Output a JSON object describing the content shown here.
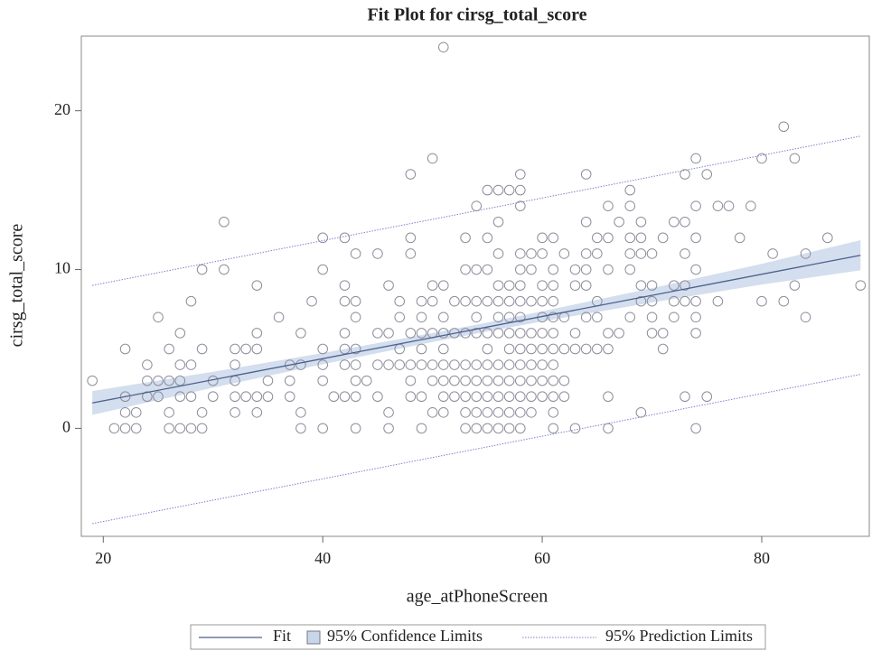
{
  "chart_data": {
    "type": "fitplot",
    "title": "Fit Plot for cirsg_total_score",
    "x_label": "age_atPhoneScreen",
    "y_label": "cirsg_total_score",
    "xlim": [
      18,
      89.8
    ],
    "ylim": [
      -6.8,
      24.7
    ],
    "xticks": [
      20,
      40,
      60,
      80
    ],
    "yticks": [
      0,
      10,
      20
    ],
    "legend": "bottom",
    "point_color": "#8e8e9c",
    "points": [
      [
        19,
        3
      ],
      [
        21,
        0
      ],
      [
        22,
        5
      ],
      [
        22,
        2
      ],
      [
        22,
        1
      ],
      [
        22,
        0
      ],
      [
        23,
        1
      ],
      [
        23,
        0
      ],
      [
        24,
        4
      ],
      [
        24,
        3
      ],
      [
        24,
        2
      ],
      [
        25,
        7
      ],
      [
        25,
        3
      ],
      [
        25,
        2
      ],
      [
        26,
        5
      ],
      [
        26,
        3
      ],
      [
        26,
        1
      ],
      [
        26,
        0
      ],
      [
        27,
        6
      ],
      [
        27,
        4
      ],
      [
        27,
        3
      ],
      [
        27,
        2
      ],
      [
        27,
        0
      ],
      [
        28,
        8
      ],
      [
        28,
        4
      ],
      [
        28,
        2
      ],
      [
        28,
        0
      ],
      [
        29,
        10
      ],
      [
        29,
        5
      ],
      [
        29,
        1
      ],
      [
        29,
        0
      ],
      [
        30,
        3
      ],
      [
        30,
        2
      ],
      [
        31,
        13
      ],
      [
        31,
        10
      ],
      [
        32,
        5
      ],
      [
        32,
        4
      ],
      [
        32,
        3
      ],
      [
        32,
        2
      ],
      [
        32,
        1
      ],
      [
        33,
        5
      ],
      [
        33,
        2
      ],
      [
        34,
        9
      ],
      [
        34,
        6
      ],
      [
        34,
        5
      ],
      [
        34,
        2
      ],
      [
        34,
        1
      ],
      [
        35,
        3
      ],
      [
        35,
        2
      ],
      [
        36,
        7
      ],
      [
        37,
        4
      ],
      [
        37,
        3
      ],
      [
        37,
        2
      ],
      [
        38,
        6
      ],
      [
        38,
        4
      ],
      [
        38,
        1
      ],
      [
        38,
        0
      ],
      [
        39,
        8
      ],
      [
        40,
        12
      ],
      [
        40,
        10
      ],
      [
        40,
        5
      ],
      [
        40,
        4
      ],
      [
        40,
        3
      ],
      [
        40,
        0
      ],
      [
        41,
        2
      ],
      [
        42,
        12
      ],
      [
        42,
        9
      ],
      [
        42,
        8
      ],
      [
        42,
        6
      ],
      [
        42,
        5
      ],
      [
        42,
        4
      ],
      [
        42,
        2
      ],
      [
        43,
        11
      ],
      [
        43,
        8
      ],
      [
        43,
        7
      ],
      [
        43,
        5
      ],
      [
        43,
        4
      ],
      [
        43,
        3
      ],
      [
        43,
        2
      ],
      [
        43,
        0
      ],
      [
        44,
        3
      ],
      [
        45,
        11
      ],
      [
        45,
        6
      ],
      [
        45,
        4
      ],
      [
        45,
        2
      ],
      [
        46,
        9
      ],
      [
        46,
        6
      ],
      [
        46,
        4
      ],
      [
        46,
        1
      ],
      [
        46,
        0
      ],
      [
        47,
        8
      ],
      [
        47,
        7
      ],
      [
        47,
        5
      ],
      [
        47,
        4
      ],
      [
        48,
        16
      ],
      [
        48,
        12
      ],
      [
        48,
        11
      ],
      [
        48,
        6
      ],
      [
        48,
        4
      ],
      [
        48,
        3
      ],
      [
        48,
        2
      ],
      [
        49,
        8
      ],
      [
        49,
        7
      ],
      [
        49,
        6
      ],
      [
        49,
        5
      ],
      [
        49,
        4
      ],
      [
        49,
        2
      ],
      [
        49,
        0
      ],
      [
        50,
        17
      ],
      [
        50,
        9
      ],
      [
        50,
        8
      ],
      [
        50,
        6
      ],
      [
        50,
        4
      ],
      [
        50,
        3
      ],
      [
        50,
        1
      ],
      [
        51,
        24
      ],
      [
        51,
        9
      ],
      [
        51,
        7
      ],
      [
        51,
        6
      ],
      [
        51,
        5
      ],
      [
        51,
        4
      ],
      [
        51,
        3
      ],
      [
        51,
        2
      ],
      [
        51,
        1
      ],
      [
        52,
        8
      ],
      [
        52,
        6
      ],
      [
        52,
        4
      ],
      [
        52,
        3
      ],
      [
        52,
        2
      ],
      [
        53,
        12
      ],
      [
        53,
        10
      ],
      [
        53,
        8
      ],
      [
        53,
        6
      ],
      [
        53,
        4
      ],
      [
        53,
        3
      ],
      [
        53,
        2
      ],
      [
        53,
        1
      ],
      [
        53,
        0
      ],
      [
        54,
        14
      ],
      [
        54,
        10
      ],
      [
        54,
        8
      ],
      [
        54,
        7
      ],
      [
        54,
        6
      ],
      [
        54,
        4
      ],
      [
        54,
        3
      ],
      [
        54,
        2
      ],
      [
        54,
        1
      ],
      [
        54,
        0
      ],
      [
        55,
        15
      ],
      [
        55,
        12
      ],
      [
        55,
        10
      ],
      [
        55,
        8
      ],
      [
        55,
        6
      ],
      [
        55,
        5
      ],
      [
        55,
        4
      ],
      [
        55,
        3
      ],
      [
        55,
        2
      ],
      [
        55,
        1
      ],
      [
        55,
        0
      ],
      [
        56,
        15
      ],
      [
        56,
        13
      ],
      [
        56,
        11
      ],
      [
        56,
        9
      ],
      [
        56,
        8
      ],
      [
        56,
        7
      ],
      [
        56,
        6
      ],
      [
        56,
        4
      ],
      [
        56,
        3
      ],
      [
        56,
        2
      ],
      [
        56,
        1
      ],
      [
        56,
        0
      ],
      [
        57,
        15
      ],
      [
        57,
        9
      ],
      [
        57,
        8
      ],
      [
        57,
        7
      ],
      [
        57,
        6
      ],
      [
        57,
        5
      ],
      [
        57,
        4
      ],
      [
        57,
        3
      ],
      [
        57,
        2
      ],
      [
        57,
        1
      ],
      [
        57,
        0
      ],
      [
        58,
        16
      ],
      [
        58,
        15
      ],
      [
        58,
        14
      ],
      [
        58,
        11
      ],
      [
        58,
        10
      ],
      [
        58,
        9
      ],
      [
        58,
        8
      ],
      [
        58,
        7
      ],
      [
        58,
        6
      ],
      [
        58,
        5
      ],
      [
        58,
        4
      ],
      [
        58,
        3
      ],
      [
        58,
        2
      ],
      [
        58,
        1
      ],
      [
        58,
        0
      ],
      [
        59,
        11
      ],
      [
        59,
        10
      ],
      [
        59,
        8
      ],
      [
        59,
        6
      ],
      [
        59,
        5
      ],
      [
        59,
        4
      ],
      [
        59,
        3
      ],
      [
        59,
        2
      ],
      [
        59,
        1
      ],
      [
        60,
        12
      ],
      [
        60,
        11
      ],
      [
        60,
        9
      ],
      [
        60,
        8
      ],
      [
        60,
        7
      ],
      [
        60,
        6
      ],
      [
        60,
        5
      ],
      [
        60,
        4
      ],
      [
        60,
        3
      ],
      [
        60,
        2
      ],
      [
        61,
        12
      ],
      [
        61,
        10
      ],
      [
        61,
        9
      ],
      [
        61,
        8
      ],
      [
        61,
        7
      ],
      [
        61,
        6
      ],
      [
        61,
        5
      ],
      [
        61,
        4
      ],
      [
        61,
        3
      ],
      [
        61,
        2
      ],
      [
        61,
        1
      ],
      [
        61,
        0
      ],
      [
        62,
        11
      ],
      [
        62,
        7
      ],
      [
        62,
        5
      ],
      [
        62,
        3
      ],
      [
        62,
        2
      ],
      [
        63,
        10
      ],
      [
        63,
        9
      ],
      [
        63,
        6
      ],
      [
        63,
        5
      ],
      [
        63,
        0
      ],
      [
        64,
        16
      ],
      [
        64,
        13
      ],
      [
        64,
        11
      ],
      [
        64,
        10
      ],
      [
        64,
        9
      ],
      [
        64,
        7
      ],
      [
        64,
        5
      ],
      [
        65,
        12
      ],
      [
        65,
        11
      ],
      [
        65,
        8
      ],
      [
        65,
        7
      ],
      [
        65,
        5
      ],
      [
        66,
        14
      ],
      [
        66,
        12
      ],
      [
        66,
        10
      ],
      [
        66,
        6
      ],
      [
        66,
        5
      ],
      [
        66,
        2
      ],
      [
        66,
        0
      ],
      [
        67,
        13
      ],
      [
        67,
        6
      ],
      [
        68,
        15
      ],
      [
        68,
        14
      ],
      [
        68,
        12
      ],
      [
        68,
        11
      ],
      [
        68,
        10
      ],
      [
        68,
        7
      ],
      [
        69,
        13
      ],
      [
        69,
        12
      ],
      [
        69,
        11
      ],
      [
        69,
        9
      ],
      [
        69,
        8
      ],
      [
        69,
        1
      ],
      [
        70,
        11
      ],
      [
        70,
        9
      ],
      [
        70,
        8
      ],
      [
        70,
        7
      ],
      [
        70,
        6
      ],
      [
        71,
        12
      ],
      [
        71,
        6
      ],
      [
        71,
        5
      ],
      [
        72,
        13
      ],
      [
        72,
        9
      ],
      [
        72,
        8
      ],
      [
        72,
        7
      ],
      [
        73,
        16
      ],
      [
        73,
        13
      ],
      [
        73,
        11
      ],
      [
        73,
        9
      ],
      [
        73,
        8
      ],
      [
        73,
        2
      ],
      [
        74,
        17
      ],
      [
        74,
        14
      ],
      [
        74,
        12
      ],
      [
        74,
        10
      ],
      [
        74,
        8
      ],
      [
        74,
        7
      ],
      [
        74,
        6
      ],
      [
        74,
        0
      ],
      [
        75,
        16
      ],
      [
        75,
        2
      ],
      [
        76,
        14
      ],
      [
        76,
        8
      ],
      [
        77,
        14
      ],
      [
        78,
        12
      ],
      [
        79,
        14
      ],
      [
        80,
        17
      ],
      [
        80,
        8
      ],
      [
        81,
        11
      ],
      [
        82,
        19
      ],
      [
        82,
        8
      ],
      [
        83,
        17
      ],
      [
        83,
        9
      ],
      [
        84,
        11
      ],
      [
        84,
        7
      ],
      [
        86,
        12
      ],
      [
        89,
        9
      ]
    ],
    "series": [
      {
        "name": "Fit",
        "color": "#4d5f8c",
        "x": [
          19,
          89
        ],
        "values": [
          1.6,
          10.9
        ]
      },
      {
        "name": "95% Confidence Limits",
        "color": "#c8d6ea",
        "x": [
          19,
          30,
          40,
          50,
          55,
          60,
          70,
          80,
          89
        ],
        "lower": [
          0.85,
          2.56,
          4.04,
          5.44,
          6.1,
          6.73,
          7.93,
          9.06,
          9.95
        ],
        "upper": [
          2.35,
          3.56,
          4.74,
          6.0,
          6.66,
          7.37,
          8.83,
          10.36,
          11.85
        ]
      },
      {
        "name": "95% Prediction Limits",
        "color": "#7c82cc",
        "x": [
          19,
          89
        ],
        "lower": [
          -6.0,
          3.4
        ],
        "upper": [
          9.0,
          18.4
        ]
      }
    ]
  }
}
